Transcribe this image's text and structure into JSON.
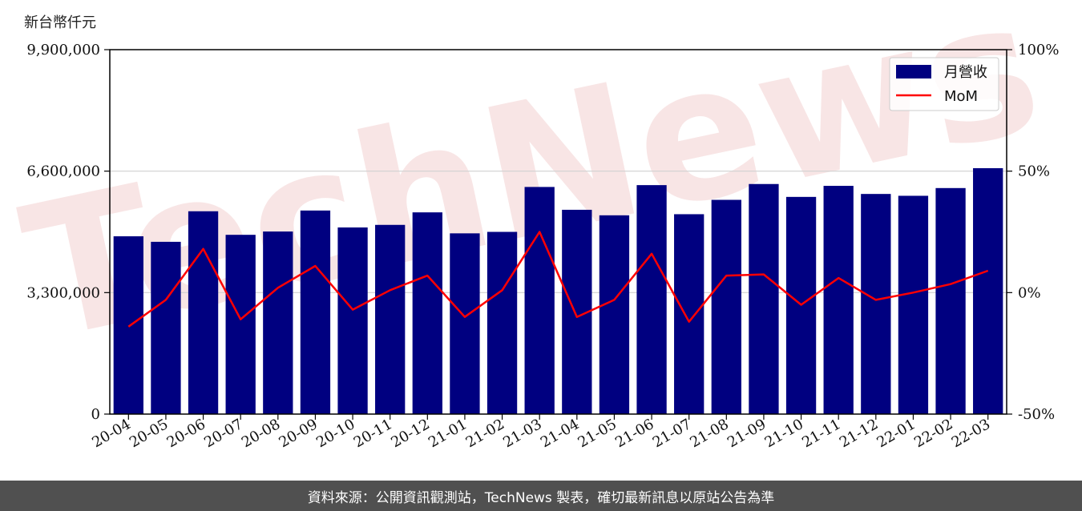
{
  "unit_label": "新台幣仟元",
  "footer_text": "資料來源：公開資訊觀測站，TechNews 製表，確切最新訊息以原站公告為準",
  "watermark_text": "TechNews",
  "colors": {
    "bar": "#000080",
    "line": "#ff0000",
    "watermark": "#f3d0d0",
    "footer_bg": "#505050"
  },
  "chart_data": {
    "type": "bar",
    "categories": [
      "20-04",
      "20-05",
      "20-06",
      "20-07",
      "20-08",
      "20-09",
      "20-10",
      "20-11",
      "20-12",
      "21-01",
      "21-02",
      "21-03",
      "21-04",
      "21-05",
      "21-06",
      "21-07",
      "21-08",
      "21-09",
      "21-10",
      "21-11",
      "21-12",
      "22-01",
      "22-02",
      "22-03"
    ],
    "series": [
      {
        "name": "月營收",
        "axis": "left",
        "type": "bar",
        "values": [
          4830000,
          4680000,
          5510000,
          4870000,
          4960000,
          5530000,
          5070000,
          5140000,
          5480000,
          4910000,
          4950000,
          6170000,
          5550000,
          5400000,
          6220000,
          5430000,
          5820000,
          6250000,
          5900000,
          6200000,
          5980000,
          5930000,
          6140000,
          6680000
        ]
      },
      {
        "name": "MoM",
        "axis": "right",
        "type": "line",
        "values": [
          -14,
          -3,
          18,
          -11,
          2,
          11,
          -7,
          1,
          7,
          -10,
          1,
          25,
          -10,
          -3,
          16,
          -12,
          7,
          7.5,
          -5,
          6,
          -3,
          0,
          3.5,
          9
        ]
      }
    ],
    "y_left": {
      "ticks": [
        "0",
        "3,300,000",
        "6,600,000",
        "9,900,000"
      ],
      "tick_values": [
        0,
        3300000,
        6600000,
        9900000
      ],
      "range": [
        0,
        9900000
      ]
    },
    "y_right": {
      "ticks": [
        "-50%",
        "0%",
        "50%",
        "100%"
      ],
      "tick_values": [
        -50,
        0,
        50,
        100
      ],
      "range": [
        -50,
        100
      ]
    },
    "grid": "horizontal",
    "legend_position": "top-right"
  }
}
